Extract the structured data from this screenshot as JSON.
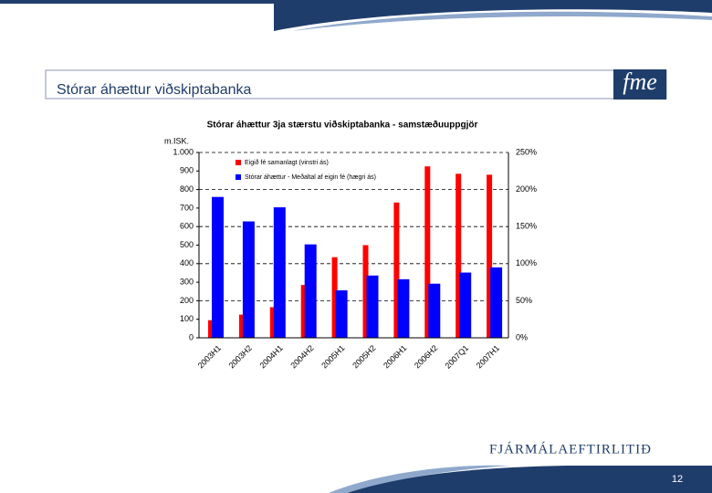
{
  "slide": {
    "title": "Stórar áhættur viðskiptabanka",
    "logo": "fme",
    "footer_logo": "FJÁRMÁLAEFTIRLITIÐ",
    "page_number": "12"
  },
  "chart_data": {
    "type": "bar",
    "title": "Stórar áhættur 3ja stærstu viðskiptabanka - samstæðuuppgjör",
    "y_label": "m.ISK.",
    "categories": [
      "2003H1",
      "2003H2",
      "2004H1",
      "2004H2",
      "2005H1",
      "2005H2",
      "2006H1",
      "2006H2",
      "2007Q1",
      "2007H1"
    ],
    "series": [
      {
        "name": "Eigið fé samanlagt (vinstri ás)",
        "color": "#ff0000",
        "values": [
          95,
          125,
          165,
          285,
          435,
          500,
          730,
          925,
          885,
          880
        ]
      },
      {
        "name": "Stórar áhættur - Meðaltal af eigin fé (hægri ás)",
        "color": "#0000ff",
        "axis": "y2",
        "values": [
          190,
          157,
          176,
          126,
          64,
          84,
          79,
          73,
          88,
          95
        ]
      }
    ],
    "ylim": [
      0,
      1000
    ],
    "yticks": [
      0,
      100,
      200,
      300,
      400,
      500,
      600,
      700,
      800,
      900,
      {
        "value": 1000,
        "label": "1.000"
      }
    ],
    "y2lim": [
      0,
      250
    ],
    "y2ticks": [
      {
        "value": 0,
        "label": "0%"
      },
      {
        "value": 50,
        "label": "50%"
      },
      {
        "value": 100,
        "label": "100%"
      },
      {
        "value": 150,
        "label": "150%"
      },
      {
        "value": 200,
        "label": "200%"
      },
      {
        "value": 250,
        "label": "250%"
      }
    ],
    "grid": true
  }
}
